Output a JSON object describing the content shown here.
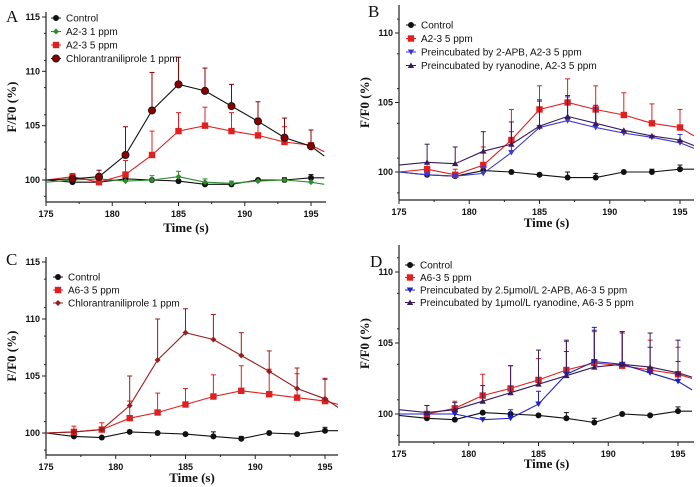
{
  "chart_data": [
    {
      "panel": "A",
      "type": "line",
      "xlabel": "Time (s)",
      "ylabel": "F/F0 (%)",
      "xlim": [
        175,
        196
      ],
      "ylim": [
        98,
        115
      ],
      "xticks": [
        175,
        180,
        185,
        190,
        195
      ],
      "yticks": [
        100,
        105,
        110,
        115
      ],
      "legend_position": "top-left",
      "x": [
        175,
        177,
        179,
        181,
        183,
        185,
        187,
        189,
        191,
        193,
        195,
        196
      ],
      "series": [
        {
          "name": "Control",
          "color": "#111111",
          "marker": "circle",
          "values": [
            100.0,
            99.8,
            99.8,
            100.1,
            100.0,
            99.9,
            99.6,
            99.6,
            100.0,
            100.0,
            100.2,
            100.2
          ],
          "errors": [
            0,
            0,
            0,
            0,
            0,
            0,
            0,
            0.1,
            0,
            0.2,
            0.3,
            0
          ]
        },
        {
          "name": "A2-3 1 ppm",
          "color": "#2e8b2e",
          "marker": "diamond",
          "values": [
            99.8,
            100.0,
            100.1,
            99.9,
            100.0,
            100.3,
            99.8,
            99.7,
            99.9,
            100.0,
            99.8,
            99.6
          ],
          "errors": [
            0,
            0,
            0.3,
            0,
            0.4,
            0.5,
            0.3,
            0.2,
            0,
            0,
            0,
            0
          ]
        },
        {
          "name": "A2-3 5 ppm",
          "color": "#e02020",
          "marker": "square",
          "values": [
            100.0,
            100.3,
            99.8,
            100.5,
            102.3,
            104.5,
            105.0,
            104.5,
            104.1,
            103.5,
            103.2,
            102.6
          ],
          "errors": [
            0,
            0.3,
            0,
            1.3,
            2.2,
            1.7,
            1.7,
            1.7,
            1.6,
            1.4,
            1.4,
            0
          ]
        },
        {
          "name": "Chlorantraniliprole 1 ppm",
          "color": "#8b0000",
          "marker": "circle-dark",
          "values": [
            100.0,
            100.1,
            100.3,
            102.3,
            106.4,
            108.8,
            108.2,
            106.8,
            105.4,
            103.9,
            103.1,
            102.2
          ],
          "errors": [
            0,
            0,
            0.6,
            2.6,
            3.5,
            2.5,
            2.1,
            2.0,
            1.8,
            1.8,
            1.5,
            0
          ]
        }
      ]
    },
    {
      "panel": "B",
      "type": "line",
      "xlabel": "Time (s)",
      "ylabel": "F/F0 (%)",
      "xlim": [
        175,
        196
      ],
      "ylim": [
        98,
        112
      ],
      "xticks": [
        175,
        180,
        185,
        190,
        195
      ],
      "yticks": [
        100,
        105,
        110
      ],
      "legend_position": "top-left",
      "x": [
        175,
        177,
        179,
        181,
        183,
        185,
        187,
        189,
        191,
        193,
        195,
        196
      ],
      "series": [
        {
          "name": "Control",
          "color": "#111111",
          "marker": "circle",
          "values": [
            100.0,
            99.8,
            99.7,
            100.1,
            100.0,
            99.8,
            99.6,
            99.6,
            100.0,
            100.0,
            100.2,
            100.2
          ],
          "errors": [
            0,
            0,
            0,
            0.1,
            0,
            0,
            0.4,
            0.3,
            0,
            0.2,
            0.3,
            0
          ]
        },
        {
          "name": "A2-3 5 ppm",
          "color": "#e02020",
          "marker": "square",
          "values": [
            100.0,
            100.2,
            99.8,
            100.5,
            102.3,
            104.5,
            105.0,
            104.5,
            104.1,
            103.5,
            103.2,
            102.6
          ],
          "errors": [
            0,
            0.4,
            0.4,
            1.3,
            2.2,
            1.7,
            1.7,
            1.7,
            1.6,
            1.4,
            1.3,
            0
          ]
        },
        {
          "name": "Preincubated by 2-APB, A2-3 5 ppm",
          "color": "#3a3ad0",
          "marker": "triangle-down",
          "values": [
            100.0,
            99.8,
            99.7,
            99.9,
            101.4,
            103.2,
            103.7,
            103.2,
            102.8,
            102.5,
            102.1,
            101.7
          ],
          "errors": [
            0,
            0,
            0,
            0.5,
            1.5,
            2.0,
            1.7,
            1.4,
            0,
            0,
            0.6,
            0
          ]
        },
        {
          "name": "Preincubated by ryanodine, A2-3 5 ppm",
          "color": "#3b1a5a",
          "marker": "triangle-up",
          "values": [
            100.5,
            100.7,
            100.6,
            101.5,
            102.0,
            103.3,
            104.0,
            103.5,
            103.0,
            102.6,
            102.3,
            101.9
          ],
          "errors": [
            0,
            1.3,
            1.2,
            1.4,
            1.6,
            1.8,
            1.5,
            1.3,
            0,
            0,
            0,
            0
          ]
        }
      ]
    },
    {
      "panel": "C",
      "type": "line",
      "xlabel": "Time (s)",
      "ylabel": "F/F0 (%)",
      "xlim": [
        175,
        196
      ],
      "ylim": [
        98,
        115
      ],
      "xticks": [
        175,
        180,
        185,
        190,
        195
      ],
      "yticks": [
        100,
        105,
        110,
        115
      ],
      "legend_position": "top-left",
      "x": [
        175,
        177,
        179,
        181,
        183,
        185,
        187,
        189,
        191,
        193,
        195,
        196
      ],
      "series": [
        {
          "name": "Control",
          "color": "#111111",
          "marker": "circle",
          "values": [
            100.0,
            99.7,
            99.6,
            100.1,
            100.0,
            99.9,
            99.7,
            99.5,
            100.0,
            99.9,
            100.2,
            100.2
          ],
          "errors": [
            0,
            0,
            0,
            0,
            0,
            0,
            0.4,
            0.2,
            0,
            0,
            0.3,
            0
          ]
        },
        {
          "name": "A6-3 5 ppm",
          "color": "#e02020",
          "marker": "square",
          "values": [
            100.0,
            100.1,
            100.3,
            101.3,
            101.8,
            102.5,
            103.2,
            103.7,
            103.4,
            103.1,
            102.8,
            102.5
          ],
          "errors": [
            0,
            0.5,
            0.6,
            1.5,
            1.7,
            1.4,
            1.9,
            2.2,
            2.2,
            2.1,
            1.9,
            0
          ]
        },
        {
          "name": "Chlorantraniliprole 1 ppm",
          "color": "#9b1c1c",
          "marker": "diamond",
          "values": [
            100.0,
            100.1,
            100.3,
            102.4,
            106.4,
            108.8,
            108.2,
            106.8,
            105.4,
            103.9,
            103.0,
            102.2
          ],
          "errors": [
            0,
            0,
            0,
            2.6,
            3.6,
            2.1,
            2.2,
            2.0,
            1.8,
            1.8,
            1.8,
            0
          ]
        }
      ]
    },
    {
      "panel": "D",
      "type": "line",
      "xlabel": "Time (s)",
      "ylabel": "F/F0 (%)",
      "xlim": [
        175,
        196
      ],
      "ylim": [
        98,
        112
      ],
      "xticks": [
        175,
        180,
        185,
        190,
        195
      ],
      "yticks": [
        100,
        105,
        110
      ],
      "legend_position": "top-left",
      "x": [
        175,
        177,
        179,
        181,
        183,
        185,
        187,
        189,
        191,
        193,
        195,
        196
      ],
      "series": [
        {
          "name": "Control",
          "color": "#111111",
          "marker": "circle",
          "values": [
            99.9,
            99.7,
            99.6,
            100.1,
            100.0,
            99.9,
            99.7,
            99.4,
            100.0,
            99.9,
            100.2,
            100.2
          ],
          "errors": [
            0,
            0,
            0,
            0,
            0,
            0,
            0.4,
            0.3,
            0,
            0,
            0.3,
            0
          ]
        },
        {
          "name": "A6-3 5 ppm",
          "color": "#e02020",
          "marker": "square",
          "values": [
            100.0,
            100.0,
            100.4,
            101.3,
            101.8,
            102.4,
            103.1,
            103.6,
            103.4,
            103.1,
            102.8,
            102.5
          ],
          "errors": [
            0,
            0.6,
            0.5,
            1.5,
            1.6,
            1.5,
            2.0,
            2.2,
            2.3,
            2.1,
            1.9,
            0
          ]
        },
        {
          "name": "Preincubated by 2.5μmol/L 2-APB, A6-3 5 ppm",
          "color": "#2020c0",
          "marker": "triangle-down",
          "values": [
            100.0,
            100.0,
            100.0,
            99.6,
            99.7,
            100.7,
            102.8,
            103.7,
            103.5,
            102.9,
            102.3,
            101.7
          ],
          "errors": [
            0,
            0,
            0,
            0,
            0.6,
            0.9,
            1.6,
            2.4,
            2.3,
            1.8,
            1.4,
            0
          ]
        },
        {
          "name": "Preincubated by 1μmol/L ryanodine, A6-3 5 ppm",
          "color": "#3b1a5a",
          "marker": "triangle-up",
          "values": [
            100.3,
            100.1,
            100.3,
            100.9,
            101.5,
            102.1,
            102.7,
            103.3,
            103.5,
            103.3,
            102.9,
            102.6
          ],
          "errors": [
            0,
            0.5,
            0.5,
            1.1,
            1.9,
            2.4,
            2.5,
            2.6,
            2.3,
            2.4,
            2.3,
            0
          ]
        }
      ]
    }
  ]
}
